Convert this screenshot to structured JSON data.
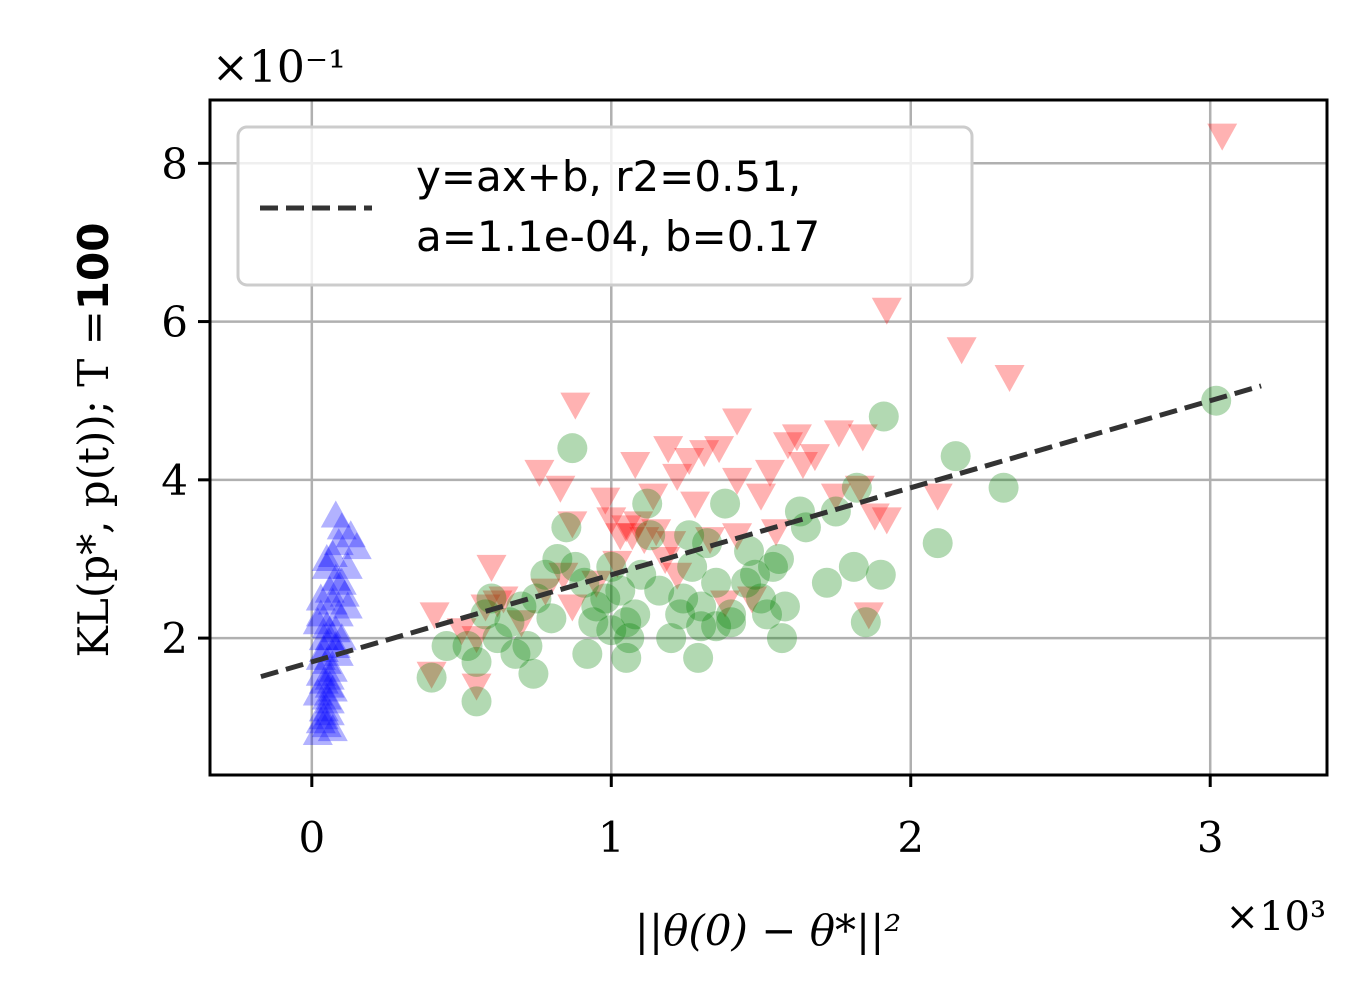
{
  "chart_data": {
    "type": "scatter",
    "xlabel": "||θ(0) − θ*||²",
    "ylabel_prefix": "KL(p*, p(t)); T =",
    "ylabel_value": "100",
    "x_scale_label": "×10³",
    "y_scale_label": "×10⁻¹",
    "x_scale": 1000,
    "y_scale": 0.1,
    "xlim": [
      -0.34,
      3.39
    ],
    "ylim": [
      0.27,
      8.8
    ],
    "xticks": [
      0,
      1,
      2,
      3
    ],
    "yticks": [
      2,
      4,
      6,
      8
    ],
    "xtick_labels": [
      "0",
      "1",
      "2",
      "3"
    ],
    "ytick_labels": [
      "2",
      "4",
      "6",
      "8"
    ],
    "grid": true,
    "legend_position": "top-left",
    "legend": {
      "line1": "y=ax+b, r2=0.51,",
      "line2": "a=1.1e-04, b=0.17"
    },
    "fit": {
      "a_scaled": 1.1,
      "b_scaled": 1.7,
      "x_range": [
        -0.17,
        3.17
      ],
      "color": "#333333"
    },
    "series": [
      {
        "marker": "triangle-up",
        "color": "#0000ff",
        "points": [
          [
            0.02,
            0.8
          ],
          [
            0.03,
            0.95
          ],
          [
            0.04,
            1.1
          ],
          [
            0.05,
            1.25
          ],
          [
            0.06,
            1.4
          ],
          [
            0.03,
            1.55
          ],
          [
            0.05,
            1.7
          ],
          [
            0.04,
            1.85
          ],
          [
            0.06,
            2.0
          ],
          [
            0.05,
            2.15
          ],
          [
            0.03,
            2.3
          ],
          [
            0.07,
            2.45
          ],
          [
            0.06,
            2.6
          ],
          [
            0.08,
            2.75
          ],
          [
            0.05,
            2.9
          ],
          [
            0.07,
            3.05
          ],
          [
            0.09,
            3.2
          ],
          [
            0.1,
            3.4
          ],
          [
            0.15,
            3.15
          ],
          [
            0.12,
            2.9
          ],
          [
            0.08,
            3.55
          ],
          [
            0.04,
            1.0
          ],
          [
            0.06,
            1.2
          ],
          [
            0.07,
            1.6
          ],
          [
            0.08,
            1.9
          ],
          [
            0.02,
            1.3
          ],
          [
            0.09,
            2.3
          ],
          [
            0.1,
            2.7
          ],
          [
            0.04,
            2.0
          ],
          [
            0.03,
            1.75
          ],
          [
            0.06,
            1.5
          ],
          [
            0.11,
            2.55
          ],
          [
            0.05,
            0.9
          ],
          [
            0.07,
            1.35
          ],
          [
            0.09,
            1.8
          ],
          [
            0.02,
            2.2
          ],
          [
            0.08,
            2.1
          ],
          [
            0.06,
            1.05
          ],
          [
            0.04,
            1.45
          ],
          [
            0.1,
            2.0
          ],
          [
            0.12,
            2.4
          ],
          [
            0.03,
            2.5
          ],
          [
            0.05,
            3.0
          ],
          [
            0.13,
            3.3
          ],
          [
            0.07,
            0.85
          ]
        ]
      },
      {
        "marker": "triangle-down",
        "color": "#ff0000",
        "points": [
          [
            3.04,
            8.35
          ],
          [
            1.92,
            6.15
          ],
          [
            2.17,
            5.65
          ],
          [
            2.33,
            5.3
          ],
          [
            0.88,
            4.95
          ],
          [
            1.42,
            4.75
          ],
          [
            1.62,
            4.55
          ],
          [
            1.76,
            4.6
          ],
          [
            1.84,
            4.55
          ],
          [
            1.59,
            4.45
          ],
          [
            1.68,
            4.3
          ],
          [
            1.19,
            4.4
          ],
          [
            1.31,
            4.35
          ],
          [
            1.36,
            4.4
          ],
          [
            1.26,
            4.25
          ],
          [
            0.76,
            4.1
          ],
          [
            1.08,
            4.2
          ],
          [
            1.22,
            4.05
          ],
          [
            1.42,
            4.0
          ],
          [
            1.53,
            4.1
          ],
          [
            1.64,
            4.2
          ],
          [
            0.83,
            3.9
          ],
          [
            0.98,
            3.75
          ],
          [
            1.14,
            3.8
          ],
          [
            1.28,
            3.7
          ],
          [
            1.5,
            3.8
          ],
          [
            1.75,
            3.8
          ],
          [
            1.83,
            3.9
          ],
          [
            1.92,
            3.5
          ],
          [
            1.88,
            3.55
          ],
          [
            2.09,
            3.8
          ],
          [
            0.87,
            3.45
          ],
          [
            1.0,
            3.5
          ],
          [
            1.03,
            3.3
          ],
          [
            1.05,
            3.4
          ],
          [
            1.07,
            3.3
          ],
          [
            1.09,
            3.45
          ],
          [
            1.11,
            3.25
          ],
          [
            1.15,
            3.35
          ],
          [
            1.2,
            3.2
          ],
          [
            1.33,
            3.25
          ],
          [
            1.42,
            3.3
          ],
          [
            1.55,
            3.35
          ],
          [
            0.6,
            2.9
          ],
          [
            0.84,
            2.8
          ],
          [
            0.95,
            2.7
          ],
          [
            0.58,
            2.4
          ],
          [
            0.7,
            2.2
          ],
          [
            0.41,
            2.3
          ],
          [
            0.5,
            2.1
          ],
          [
            0.55,
            2.0
          ],
          [
            0.64,
            2.5
          ],
          [
            0.78,
            2.6
          ],
          [
            1.22,
            2.8
          ],
          [
            1.38,
            2.45
          ],
          [
            1.47,
            2.5
          ],
          [
            1.86,
            2.3
          ],
          [
            0.4,
            1.55
          ],
          [
            0.55,
            1.4
          ],
          [
            0.87,
            2.4
          ],
          [
            1.02,
            2.95
          ],
          [
            1.18,
            3.0
          ],
          [
            0.62,
            2.45
          ]
        ]
      },
      {
        "marker": "circle",
        "color": "#008000",
        "points": [
          [
            3.02,
            5.0
          ],
          [
            1.91,
            4.8
          ],
          [
            2.15,
            4.3
          ],
          [
            2.31,
            3.9
          ],
          [
            2.09,
            3.2
          ],
          [
            1.82,
            3.9
          ],
          [
            0.87,
            4.4
          ],
          [
            1.63,
            3.6
          ],
          [
            1.75,
            3.6
          ],
          [
            1.65,
            3.4
          ],
          [
            1.38,
            3.7
          ],
          [
            1.12,
            3.7
          ],
          [
            1.26,
            3.3
          ],
          [
            1.32,
            3.2
          ],
          [
            1.46,
            3.1
          ],
          [
            1.54,
            2.9
          ],
          [
            1.9,
            2.8
          ],
          [
            1.81,
            2.9
          ],
          [
            1.72,
            2.7
          ],
          [
            1.58,
            2.4
          ],
          [
            1.52,
            2.3
          ],
          [
            1.5,
            2.5
          ],
          [
            1.4,
            2.3
          ],
          [
            1.3,
            2.4
          ],
          [
            1.24,
            2.5
          ],
          [
            1.16,
            2.6
          ],
          [
            1.1,
            2.8
          ],
          [
            1.08,
            2.3
          ],
          [
            1.06,
            2.0
          ],
          [
            1.05,
            2.2
          ],
          [
            1.03,
            2.6
          ],
          [
            1.0,
            2.9
          ],
          [
            0.98,
            2.5
          ],
          [
            0.95,
            2.4
          ],
          [
            0.91,
            2.7
          ],
          [
            0.88,
            2.9
          ],
          [
            0.85,
            3.4
          ],
          [
            0.82,
            3.0
          ],
          [
            0.78,
            2.8
          ],
          [
            0.75,
            2.5
          ],
          [
            0.72,
            1.9
          ],
          [
            0.7,
            2.4
          ],
          [
            0.66,
            2.2
          ],
          [
            0.62,
            2.0
          ],
          [
            0.58,
            2.3
          ],
          [
            0.55,
            1.7
          ],
          [
            0.52,
            1.9
          ],
          [
            0.55,
            1.2
          ],
          [
            0.4,
            1.5
          ],
          [
            0.45,
            1.9
          ],
          [
            0.6,
            2.5
          ],
          [
            0.92,
            1.8
          ],
          [
            1.05,
            1.75
          ],
          [
            1.29,
            1.75
          ],
          [
            1.4,
            2.2
          ],
          [
            1.57,
            2.0
          ],
          [
            1.85,
            2.2
          ],
          [
            1.2,
            2.0
          ],
          [
            1.35,
            2.7
          ],
          [
            1.45,
            2.7
          ],
          [
            1.27,
            2.9
          ],
          [
            1.13,
            3.3
          ],
          [
            1.0,
            2.1
          ],
          [
            1.23,
            2.3
          ],
          [
            1.3,
            2.15
          ],
          [
            0.94,
            2.2
          ],
          [
            0.8,
            2.25
          ],
          [
            0.68,
            1.8
          ],
          [
            0.74,
            1.55
          ],
          [
            1.48,
            2.8
          ],
          [
            1.56,
            3.0
          ],
          [
            1.35,
            2.15
          ]
        ]
      }
    ]
  }
}
